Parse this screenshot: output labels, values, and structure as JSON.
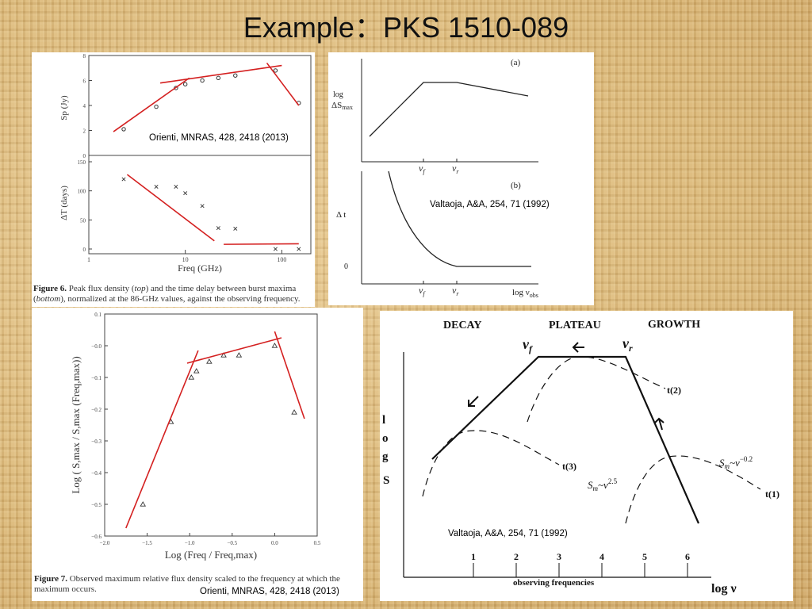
{
  "slide": {
    "title": "Example：PKS 1510-089"
  },
  "chart_data": [
    {
      "id": "fig6",
      "type": "scatter",
      "caption_label": "Figure 6.",
      "caption_text_1": "Peak flux density (",
      "caption_em_1": "top",
      "caption_text_2": ") and the time delay between burst maxima",
      "caption_em_2": "bottom",
      "caption_text_3": "), normalized at the 86-GHz values, against the observing frequency.",
      "citation": "Orienti, MNRAS, 428, 2418 (2013)",
      "xlabel": "Freq (GHz)",
      "xscale": "log",
      "xlim": [
        1,
        200
      ],
      "xticks": [
        "1",
        "10",
        "100"
      ],
      "top": {
        "ylabel": "Sp (Jy)",
        "ylim": [
          0,
          8
        ],
        "yticks": [
          "0",
          "2",
          "4",
          "6",
          "8"
        ],
        "points": [
          {
            "x": 2.3,
            "y": 2.1
          },
          {
            "x": 5,
            "y": 3.9
          },
          {
            "x": 8,
            "y": 5.4
          },
          {
            "x": 10,
            "y": 5.7
          },
          {
            "x": 15,
            "y": 6.0
          },
          {
            "x": 22,
            "y": 6.2
          },
          {
            "x": 33,
            "y": 6.4
          },
          {
            "x": 86,
            "y": 6.8
          },
          {
            "x": 150,
            "y": 4.2
          }
        ],
        "fit_lines": [
          {
            "x": [
              1.8,
              11
            ],
            "y": [
              1.9,
              6.2
            ]
          },
          {
            "x": [
              5.5,
              100
            ],
            "y": [
              5.8,
              7.2
            ]
          },
          {
            "x": 70,
            "y": 7.4,
            "x2": 150,
            "y2": 4.0
          }
        ]
      },
      "bottom": {
        "ylabel": "ΔT (days)",
        "ylim": [
          0,
          150
        ],
        "yticks": [
          "0",
          "50",
          "100",
          "150"
        ],
        "points": [
          {
            "x": 2.3,
            "y": 120
          },
          {
            "x": 5,
            "y": 107
          },
          {
            "x": 8,
            "y": 107
          },
          {
            "x": 10,
            "y": 96
          },
          {
            "x": 15,
            "y": 74
          },
          {
            "x": 22,
            "y": 36
          },
          {
            "x": 33,
            "y": 35
          },
          {
            "x": 86,
            "y": 0
          },
          {
            "x": 150,
            "y": 0
          }
        ],
        "fit_lines": [
          {
            "x": [
              2.5,
              20
            ],
            "y": [
              128,
              14
            ]
          },
          {
            "x": [
              25,
              150
            ],
            "y": [
              8,
              9
            ]
          }
        ]
      }
    },
    {
      "id": "valtaoja-ab",
      "type": "line",
      "citation": "Valtaoja, A&A, 254, 71 (1992)",
      "panel_a_label": "(a)",
      "panel_b_label": "(b)",
      "ylabel_a_1": "log",
      "ylabel_a_2": "ΔS",
      "ylabel_a_sub": "max",
      "ylabel_b": "Δ t",
      "ytick_b": "0",
      "nu": "ν",
      "sub_f": "f",
      "sub_r": "r",
      "xlabel_1": "log ν",
      "xlabel_sub": "obs"
    },
    {
      "id": "fig7",
      "type": "scatter",
      "caption_label": "Figure 7.",
      "caption_text": "Observed maximum relative flux density scaled to the frequency at which the maximum occurs.",
      "citation": "Orienti, MNRAS, 428, 2418 (2013)",
      "xlabel": "Log (Freq / Freq,max)",
      "ylabel": "Log ( S,max / S,max (Freq,max))",
      "xlim": [
        -2.0,
        0.5
      ],
      "ylim": [
        -0.6,
        0.1
      ],
      "xticks": [
        "−2.0",
        "−1.5",
        "−1.0",
        "−0.5",
        "0.0",
        "0.5"
      ],
      "yticks": [
        "0.1",
        "−0.0",
        "−0.1",
        "−0.2",
        "−0.3",
        "−0.4",
        "−0.5",
        "−0.6"
      ],
      "points": [
        {
          "x": -1.55,
          "y": -0.5
        },
        {
          "x": -1.22,
          "y": -0.24
        },
        {
          "x": -0.98,
          "y": -0.1
        },
        {
          "x": -0.92,
          "y": -0.08
        },
        {
          "x": -0.77,
          "y": -0.05
        },
        {
          "x": -0.6,
          "y": -0.03
        },
        {
          "x": -0.42,
          "y": -0.03
        },
        {
          "x": 0.0,
          "y": 0.0
        },
        {
          "x": 0.23,
          "y": -0.21
        }
      ],
      "fit_lines": [
        {
          "x": [
            -1.75,
            -0.9
          ],
          "y": [
            -0.575,
            -0.015
          ]
        },
        {
          "x": [
            -1.03,
            0.08
          ],
          "y": [
            -0.055,
            0.025
          ]
        },
        {
          "x": [
            0.0,
            0.35
          ],
          "y": [
            0.045,
            -0.23
          ]
        }
      ]
    },
    {
      "id": "valtaoja-stages",
      "type": "line",
      "citation": "Valtaoja, A&A, 254, 71 (1992)",
      "decay": "DECAY",
      "plateau": "PLATEAU",
      "growth": "GROWTH",
      "nu_f": "ν",
      "nu_f_sub": "f",
      "nu_r": "ν",
      "nu_r_sub": "r",
      "ylabel": [
        "l",
        "o",
        "g",
        "S"
      ],
      "curves": [
        "t(2)",
        "t(3)",
        "t(1)"
      ],
      "sm_low_s": "S",
      "sm_low_m": "m",
      "sm_low_tilde": "~ν",
      "sm_low_exp": "2.5",
      "sm_high_s": "S",
      "sm_high_m": "m",
      "sm_high_tilde": "~ν",
      "sm_high_exp": "−0.2",
      "xticks": [
        "1",
        "2",
        "3",
        "4",
        "5",
        "6"
      ],
      "xlabel": "observing frequencies",
      "xaxis_label": "log ν"
    }
  ]
}
